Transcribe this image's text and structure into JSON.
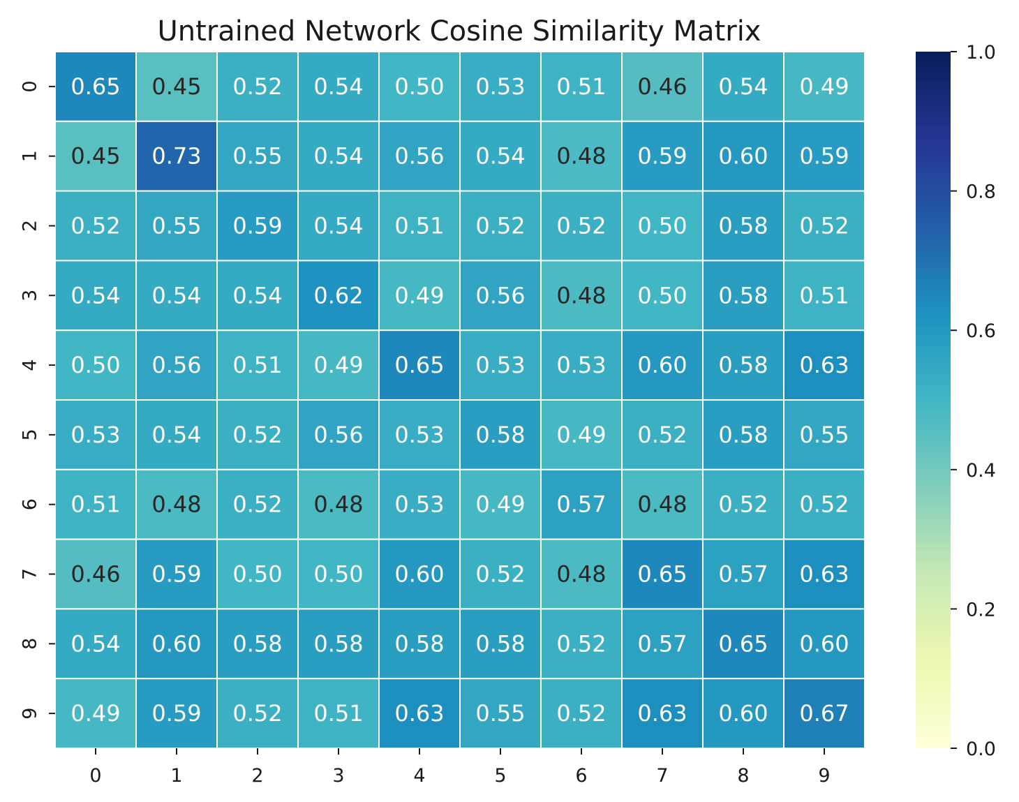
{
  "chart_data": {
    "type": "heatmap",
    "title": "Untrained Network Cosine Similarity Matrix",
    "xlabel": "",
    "ylabel": "",
    "x_categories": [
      "0",
      "1",
      "2",
      "3",
      "4",
      "5",
      "6",
      "7",
      "8",
      "9"
    ],
    "y_categories": [
      "0",
      "1",
      "2",
      "3",
      "4",
      "5",
      "6",
      "7",
      "8",
      "9"
    ],
    "values": [
      [
        0.65,
        0.45,
        0.52,
        0.54,
        0.5,
        0.53,
        0.51,
        0.46,
        0.54,
        0.49
      ],
      [
        0.45,
        0.73,
        0.55,
        0.54,
        0.56,
        0.54,
        0.48,
        0.59,
        0.6,
        0.59
      ],
      [
        0.52,
        0.55,
        0.59,
        0.54,
        0.51,
        0.52,
        0.52,
        0.5,
        0.58,
        0.52
      ],
      [
        0.54,
        0.54,
        0.54,
        0.62,
        0.49,
        0.56,
        0.48,
        0.5,
        0.58,
        0.51
      ],
      [
        0.5,
        0.56,
        0.51,
        0.49,
        0.65,
        0.53,
        0.53,
        0.6,
        0.58,
        0.63
      ],
      [
        0.53,
        0.54,
        0.52,
        0.56,
        0.53,
        0.58,
        0.49,
        0.52,
        0.58,
        0.55
      ],
      [
        0.51,
        0.48,
        0.52,
        0.48,
        0.53,
        0.49,
        0.57,
        0.48,
        0.52,
        0.52
      ],
      [
        0.46,
        0.59,
        0.5,
        0.5,
        0.6,
        0.52,
        0.48,
        0.65,
        0.57,
        0.63
      ],
      [
        0.54,
        0.6,
        0.58,
        0.58,
        0.58,
        0.58,
        0.52,
        0.57,
        0.65,
        0.6
      ],
      [
        0.49,
        0.59,
        0.52,
        0.51,
        0.63,
        0.55,
        0.52,
        0.63,
        0.6,
        0.67
      ]
    ],
    "value_format": "0.00",
    "colormap": "YlGnBu",
    "vmin": 0.0,
    "vmax": 1.0,
    "colorbar_ticks": [
      "0.0",
      "0.2",
      "0.4",
      "0.6",
      "0.8",
      "1.0"
    ],
    "colorbar_tick_values": [
      0.0,
      0.2,
      0.4,
      0.6,
      0.8,
      1.0
    ],
    "grid_color": "#ffffff",
    "annotation_dark_color": "#262626",
    "annotation_light_color": "#ffffff"
  }
}
